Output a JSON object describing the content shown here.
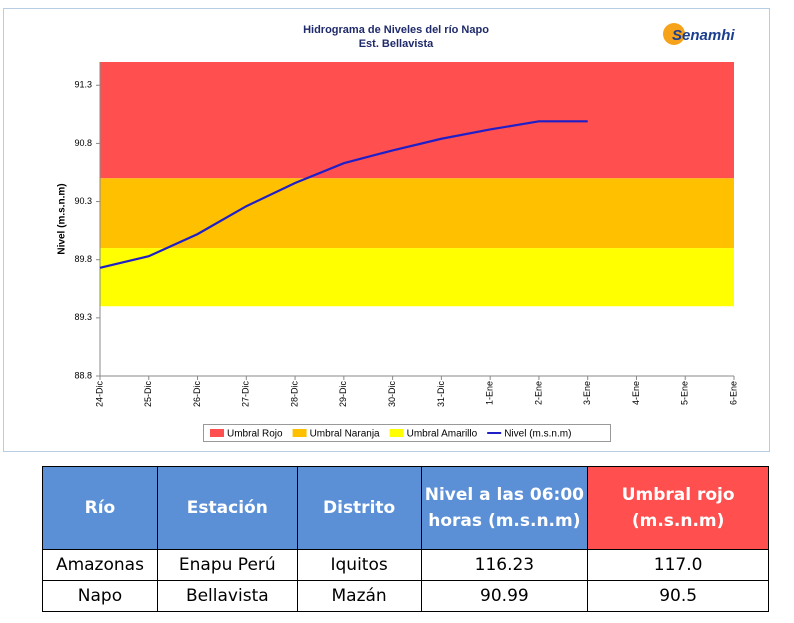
{
  "chart_data": {
    "type": "line",
    "title": "Hidrograma de Niveles del río Napo",
    "subtitle": "Est. Bellavista",
    "logo": "Senamhi",
    "y_label": "Nivel (m.s.n.m)",
    "categories": [
      "24-Dic",
      "25-Dic",
      "26-Dic",
      "27-Dic",
      "28-Dic",
      "29-Dic",
      "30-Dic",
      "31-Dic",
      "1-Ene",
      "2-Ene",
      "3-Ene",
      "4-Ene",
      "5-Ene",
      "6-Ene"
    ],
    "bands": [
      {
        "name": "Umbral Rojo",
        "color": "#ff4f4f",
        "from": 90.5,
        "to": 91.5
      },
      {
        "name": "Umbral Naranja",
        "color": "#ffc000",
        "from": 89.9,
        "to": 90.5
      },
      {
        "name": "Umbral Amarillo",
        "color": "#ffff00",
        "from": 89.4,
        "to": 89.9
      }
    ],
    "series": [
      {
        "name": "Nivel (m.s.n.m)",
        "color": "#1f1fc8",
        "values": [
          89.73,
          89.83,
          90.02,
          90.26,
          90.46,
          90.63,
          90.74,
          90.84,
          90.92,
          90.99,
          90.99,
          null,
          null,
          null
        ]
      }
    ],
    "ylim": [
      88.8,
      91.5
    ],
    "yticks": [
      88.8,
      89.3,
      89.8,
      90.3,
      90.8,
      91.3
    ]
  },
  "table": {
    "header": [
      "Río",
      "Estación",
      "Distrito",
      "Nivel a las 06:00 horas (m.s.n.m)",
      "Umbral rojo (m.s.n.m)"
    ],
    "rows": [
      [
        "Amazonas",
        "Enapu Perú",
        "Iquitos",
        "116.23",
        "117.0"
      ],
      [
        "Napo",
        "Bellavista",
        "Mazán",
        "90.99",
        "90.5"
      ]
    ]
  }
}
